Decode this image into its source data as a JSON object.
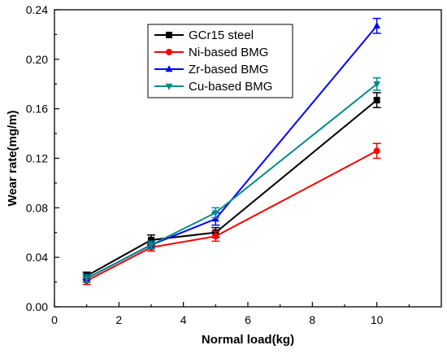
{
  "chart_data": {
    "type": "line",
    "xlabel": "Normal load(kg)",
    "ylabel": "Wear rate(mg/m)",
    "xlim": [
      0,
      12
    ],
    "ylim": [
      0,
      0.24
    ],
    "xticks": [
      0,
      2,
      4,
      6,
      8,
      10
    ],
    "yticks": [
      0.0,
      0.04,
      0.08,
      0.12,
      0.16,
      0.2,
      0.24
    ],
    "ytick_labels": [
      "0.00",
      "0.04",
      "0.08",
      "0.12",
      "0.16",
      "0.20",
      "0.24"
    ],
    "grid": false,
    "legend_position": "top-center",
    "x": [
      1,
      3,
      5,
      10
    ],
    "series": [
      {
        "name": "GCr15 steel",
        "color": "#000000",
        "marker": "square",
        "values": [
          0.025,
          0.054,
          0.06,
          0.167
        ],
        "errors": [
          0.003,
          0.004,
          0.004,
          0.006
        ]
      },
      {
        "name": "Ni-based BMG",
        "color": "#ff0000",
        "marker": "circle",
        "values": [
          0.021,
          0.048,
          0.057,
          0.126
        ],
        "errors": [
          0.003,
          0.003,
          0.004,
          0.006
        ]
      },
      {
        "name": "Zr-based BMG",
        "color": "#0000ff",
        "marker": "triangle-up",
        "values": [
          0.023,
          0.05,
          0.071,
          0.227
        ],
        "errors": [
          0.003,
          0.003,
          0.005,
          0.006
        ]
      },
      {
        "name": "Cu-based BMG",
        "color": "#008b8b",
        "marker": "triangle-down",
        "values": [
          0.023,
          0.05,
          0.076,
          0.18
        ],
        "errors": [
          0.003,
          0.003,
          0.004,
          0.005
        ]
      }
    ]
  }
}
